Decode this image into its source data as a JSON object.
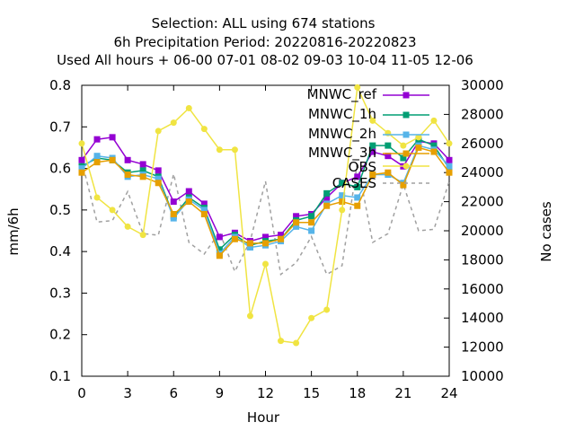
{
  "chart_data": {
    "type": "line",
    "title": [
      "Selection: ALL using   674 stations",
      "6h Precipitation   Period: 20220816-20220823",
      "Used  All hours + 06-00 07-01 08-02 09-03 10-04 11-05 12-06"
    ],
    "xlabel": "Hour",
    "ylabel": "mm/6h",
    "y2label": "No cases",
    "xlim": [
      0,
      24
    ],
    "ylim": [
      0.1,
      0.8
    ],
    "y2lim": [
      10000,
      30000
    ],
    "xticks": [
      "0",
      "3",
      "6",
      "9",
      "12",
      "15",
      "18",
      "21",
      "24"
    ],
    "yticks": [
      "0.1",
      "0.2",
      "0.3",
      "0.4",
      "0.5",
      "0.6",
      "0.7",
      "0.8"
    ],
    "y2ticks": [
      "10000",
      "12000",
      "14000",
      "16000",
      "18000",
      "20000",
      "22000",
      "24000",
      "26000",
      "28000",
      "30000"
    ],
    "legend_position": "top-right",
    "x": [
      0,
      1,
      2,
      3,
      4,
      5,
      6,
      7,
      8,
      9,
      10,
      11,
      12,
      13,
      14,
      15,
      16,
      17,
      18,
      19,
      20,
      21,
      22,
      23,
      24
    ],
    "series": [
      {
        "name": "MNWC_ref",
        "color": "#9400d3",
        "marker": "square",
        "axis": "y",
        "values": [
          0.62,
          0.67,
          0.675,
          0.62,
          0.61,
          0.595,
          0.52,
          0.545,
          0.515,
          0.435,
          0.445,
          0.425,
          0.435,
          0.44,
          0.485,
          0.49,
          0.53,
          0.565,
          0.58,
          0.64,
          0.63,
          0.605,
          0.665,
          0.66,
          0.62
        ]
      },
      {
        "name": "MNWC_1h",
        "color": "#009e73",
        "marker": "square",
        "axis": "y",
        "values": [
          0.605,
          0.625,
          0.62,
          0.59,
          0.595,
          0.58,
          0.485,
          0.53,
          0.505,
          0.405,
          0.44,
          0.415,
          0.425,
          0.43,
          0.475,
          0.485,
          0.54,
          0.565,
          0.555,
          0.655,
          0.655,
          0.625,
          0.67,
          0.655,
          0.6
        ]
      },
      {
        "name": "MNWC_2h",
        "color": "#56b4e9",
        "marker": "square",
        "axis": "y",
        "values": [
          0.6,
          0.63,
          0.625,
          0.58,
          0.585,
          0.575,
          0.48,
          0.525,
          0.5,
          0.395,
          0.435,
          0.41,
          0.415,
          0.425,
          0.46,
          0.45,
          0.515,
          0.535,
          0.53,
          0.585,
          0.585,
          0.565,
          0.655,
          0.645,
          0.605
        ]
      },
      {
        "name": "MNWC_3h",
        "color": "#e69f00",
        "marker": "square",
        "axis": "y",
        "values": [
          0.59,
          0.615,
          0.62,
          0.585,
          0.58,
          0.565,
          0.49,
          0.52,
          0.49,
          0.39,
          0.43,
          0.42,
          0.42,
          0.43,
          0.47,
          0.47,
          0.51,
          0.52,
          0.51,
          0.585,
          0.59,
          0.56,
          0.65,
          0.64,
          0.59
        ]
      },
      {
        "name": "OBS",
        "color": "#f0e442",
        "marker": "circle",
        "axis": "y",
        "values": [
          0.66,
          0.53,
          0.5,
          0.46,
          0.44,
          0.69,
          0.71,
          0.745,
          0.695,
          0.645,
          0.645,
          0.245,
          0.37,
          0.185,
          0.18,
          0.24,
          0.26,
          0.5,
          0.795,
          0.715,
          0.685,
          0.655,
          0.675,
          0.715,
          0.66
        ]
      },
      {
        "name": "CASES",
        "color": "#a0a0a0",
        "marker": "none",
        "axis": "y2",
        "dashed": true,
        "values": [
          24800,
          20600,
          20700,
          22700,
          19800,
          19700,
          23900,
          19200,
          18400,
          19900,
          17200,
          19300,
          23400,
          17000,
          17800,
          19600,
          17000,
          17600,
          24700,
          19200,
          19800,
          23200,
          20000,
          20100,
          23400
        ]
      }
    ]
  }
}
